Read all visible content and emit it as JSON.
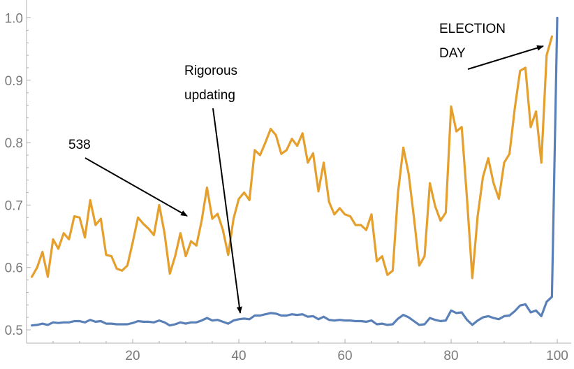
{
  "chart_data": {
    "type": "line",
    "title": "",
    "xlabel": "",
    "ylabel": "",
    "xlim": [
      0,
      101
    ],
    "ylim": [
      0.49,
      1.0
    ],
    "x_ticks": [
      20,
      40,
      60,
      80,
      100
    ],
    "y_ticks": [
      0.5,
      0.6,
      0.7,
      0.8,
      0.9,
      1.0
    ],
    "x_tick_labels": [
      "20",
      "40",
      "60",
      "80",
      "100"
    ],
    "y_tick_labels": [
      "0.5",
      "0.6",
      "0.7",
      "0.8",
      "0.9",
      "1.0"
    ],
    "grid": false,
    "series": [
      {
        "color": "#e59f2c",
        "x": [
          1,
          2,
          3,
          4,
          5,
          6,
          7,
          8,
          9,
          10,
          11,
          12,
          13,
          14,
          15,
          16,
          17,
          18,
          19,
          20,
          21,
          22,
          23,
          24,
          25,
          26,
          27,
          28,
          29,
          30,
          31,
          32,
          33,
          34,
          35,
          36,
          37,
          38,
          39,
          40,
          41,
          42,
          43,
          44,
          45,
          46,
          47,
          48,
          49,
          50,
          51,
          52,
          53,
          54,
          55,
          56,
          57,
          58,
          59,
          60,
          61,
          62,
          63,
          64,
          65,
          66,
          67,
          68,
          69,
          70,
          71,
          72,
          73,
          74,
          75,
          76,
          77,
          78,
          79,
          80,
          81,
          82,
          83,
          84,
          85,
          86,
          87,
          88,
          89,
          90,
          91,
          92,
          93,
          94,
          95,
          96,
          97,
          98,
          99
        ],
        "values": [
          0.585,
          0.6,
          0.625,
          0.585,
          0.645,
          0.63,
          0.655,
          0.645,
          0.682,
          0.68,
          0.648,
          0.708,
          0.668,
          0.678,
          0.62,
          0.618,
          0.598,
          0.595,
          0.603,
          0.64,
          0.68,
          0.67,
          0.662,
          0.652,
          0.7,
          0.655,
          0.59,
          0.618,
          0.655,
          0.618,
          0.642,
          0.635,
          0.675,
          0.728,
          0.678,
          0.686,
          0.66,
          0.62,
          0.678,
          0.71,
          0.72,
          0.708,
          0.788,
          0.78,
          0.8,
          0.822,
          0.812,
          0.782,
          0.788,
          0.806,
          0.795,
          0.815,
          0.768,
          0.783,
          0.722,
          0.768,
          0.705,
          0.685,
          0.695,
          0.685,
          0.682,
          0.668,
          0.668,
          0.66,
          0.685,
          0.61,
          0.618,
          0.588,
          0.595,
          0.72,
          0.792,
          0.75,
          0.68,
          0.603,
          0.618,
          0.735,
          0.698,
          0.675,
          0.688,
          0.858,
          0.818,
          0.825,
          0.71,
          0.583,
          0.682,
          0.745,
          0.775,
          0.735,
          0.71,
          0.768,
          0.782,
          0.855,
          0.915,
          0.92,
          0.825,
          0.85,
          0.768,
          0.94,
          0.97
        ]
      },
      {
        "color": "#5a80b8",
        "x": [
          1,
          2,
          3,
          4,
          5,
          6,
          7,
          8,
          9,
          10,
          11,
          12,
          13,
          14,
          15,
          16,
          17,
          18,
          19,
          20,
          21,
          22,
          23,
          24,
          25,
          26,
          27,
          28,
          29,
          30,
          31,
          32,
          33,
          34,
          35,
          36,
          37,
          38,
          39,
          40,
          41,
          42,
          43,
          44,
          45,
          46,
          47,
          48,
          49,
          50,
          51,
          52,
          53,
          54,
          55,
          56,
          57,
          58,
          59,
          60,
          61,
          62,
          63,
          64,
          65,
          66,
          67,
          68,
          69,
          70,
          71,
          72,
          73,
          74,
          75,
          76,
          77,
          78,
          79,
          80,
          81,
          82,
          83,
          84,
          85,
          86,
          87,
          88,
          89,
          90,
          91,
          92,
          93,
          94,
          95,
          96,
          97,
          98,
          99,
          100
        ],
        "values": [
          0.507,
          0.508,
          0.51,
          0.508,
          0.512,
          0.511,
          0.512,
          0.512,
          0.514,
          0.514,
          0.512,
          0.516,
          0.513,
          0.514,
          0.51,
          0.51,
          0.509,
          0.509,
          0.509,
          0.511,
          0.514,
          0.513,
          0.513,
          0.512,
          0.515,
          0.512,
          0.507,
          0.509,
          0.512,
          0.51,
          0.512,
          0.512,
          0.515,
          0.519,
          0.515,
          0.516,
          0.513,
          0.51,
          0.515,
          0.517,
          0.518,
          0.517,
          0.523,
          0.523,
          0.525,
          0.527,
          0.526,
          0.523,
          0.523,
          0.525,
          0.524,
          0.525,
          0.521,
          0.522,
          0.517,
          0.521,
          0.516,
          0.515,
          0.516,
          0.515,
          0.515,
          0.514,
          0.514,
          0.513,
          0.515,
          0.509,
          0.51,
          0.508,
          0.509,
          0.518,
          0.524,
          0.52,
          0.514,
          0.508,
          0.509,
          0.519,
          0.516,
          0.514,
          0.515,
          0.531,
          0.527,
          0.528,
          0.516,
          0.508,
          0.515,
          0.52,
          0.522,
          0.519,
          0.517,
          0.522,
          0.523,
          0.53,
          0.539,
          0.541,
          0.528,
          0.531,
          0.522,
          0.545,
          0.553,
          1.0
        ]
      }
    ],
    "annotations": [
      {
        "lines": [
          "538"
        ]
      },
      {
        "lines": [
          "Rigorous",
          "updating"
        ]
      },
      {
        "lines": [
          "ELECTION",
          "DAY"
        ]
      }
    ]
  }
}
